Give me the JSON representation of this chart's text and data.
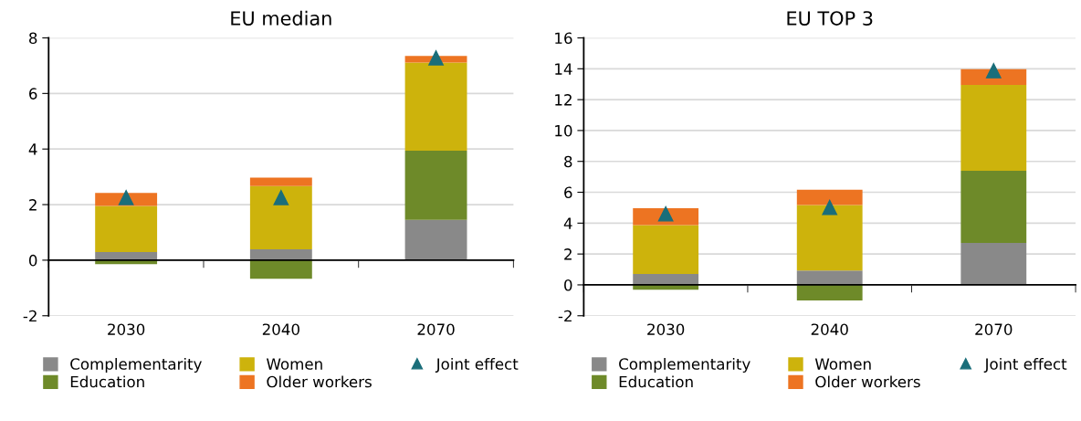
{
  "chart_data": [
    {
      "type": "bar",
      "title": "EU median",
      "categories": [
        "2030",
        "2040",
        "2070"
      ],
      "stacked": true,
      "ylim": [
        -2,
        8
      ],
      "yticks": [
        -2,
        0,
        2,
        4,
        6,
        8
      ],
      "grid": "y",
      "legend": "bottom",
      "series": [
        {
          "name": "Complementarity",
          "color": "#898989",
          "values": [
            0.29,
            0.39,
            1.45
          ]
        },
        {
          "name": "Education",
          "color": "#6e8a29",
          "values": [
            -0.14,
            -0.67,
            2.49
          ]
        },
        {
          "name": "Women",
          "color": "#cdb30c",
          "values": [
            1.66,
            2.28,
            3.17
          ]
        },
        {
          "name": "Older workers",
          "color": "#ed7422",
          "values": [
            0.47,
            0.3,
            0.24
          ]
        },
        {
          "name": "Joint effect",
          "type": "scatter",
          "marker": "triangle",
          "color": "#1a6e7a",
          "values": [
            2.25,
            2.25,
            7.28
          ]
        }
      ]
    },
    {
      "type": "bar",
      "title": "EU TOP 3",
      "categories": [
        "2030",
        "2040",
        "2070"
      ],
      "stacked": true,
      "ylim": [
        -2,
        16
      ],
      "yticks": [
        -2,
        0,
        2,
        4,
        6,
        8,
        10,
        12,
        14,
        16
      ],
      "grid": "y",
      "legend": "bottom",
      "series": [
        {
          "name": "Complementarity",
          "color": "#898989",
          "values": [
            0.7,
            0.93,
            2.72
          ]
        },
        {
          "name": "Education",
          "color": "#6e8a29",
          "values": [
            -0.31,
            -1.01,
            4.67
          ]
        },
        {
          "name": "Women",
          "color": "#cdb30c",
          "values": [
            3.17,
            4.25,
            5.57
          ]
        },
        {
          "name": "Older workers",
          "color": "#ed7422",
          "values": [
            1.09,
            0.99,
            1.01
          ]
        },
        {
          "name": "Joint effect",
          "type": "scatter",
          "marker": "triangle",
          "color": "#1a6e7a",
          "values": [
            4.6,
            5.02,
            13.87
          ]
        }
      ]
    }
  ]
}
